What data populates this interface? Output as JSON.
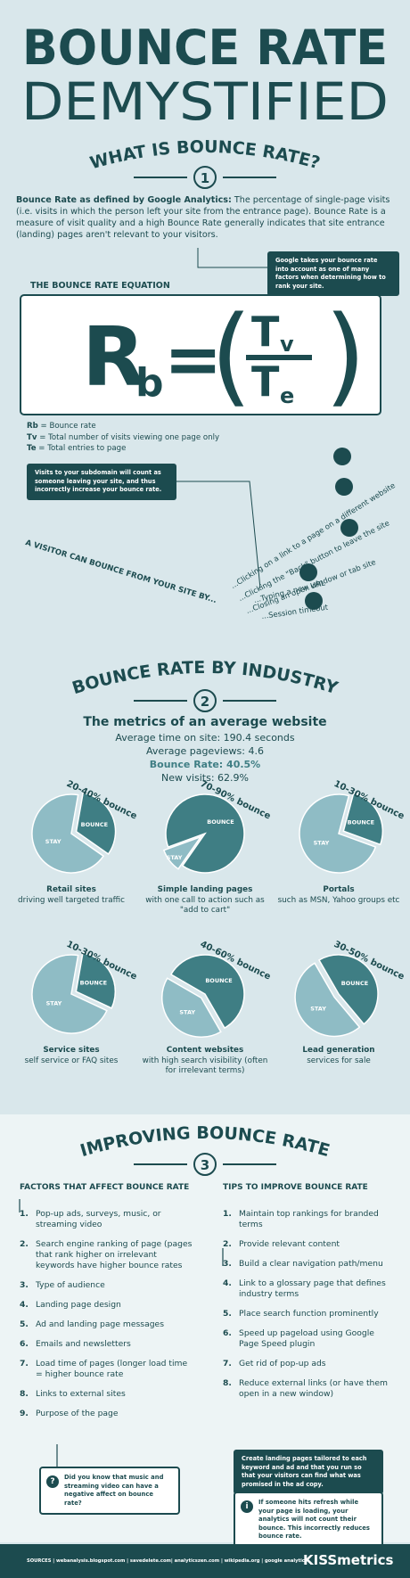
{
  "header": {
    "title_line1": "BOUNCE RATE",
    "title_line2": "DEMYSTIFIED"
  },
  "section1": {
    "heading": "WHAT IS BOUNCE RATE?",
    "number": "1",
    "definition_lead": "Bounce Rate as defined by Google Analytics:",
    "definition_text": " The percentage of single-page visits (i.e. visits in which the person left your site from the entrance page). Bounce Rate is a measure of visit quality and a high Bounce Rate generally indicates that site entrance (landing) pages aren't relevant to your visitors.",
    "google_callout": "Google takes your bounce rate into account as one of many factors when determining how to rank your site.",
    "equation_heading": "THE BOUNCE RATE EQUATION",
    "equation": {
      "r": "R",
      "r_sub": "b",
      "equals": "=",
      "open": "(",
      "close": ")",
      "numerator": "T",
      "numerator_sub": "v",
      "denominator": "T",
      "denominator_sub": "e"
    },
    "legend": [
      {
        "term": "Rb",
        "text": " = Bounce rate"
      },
      {
        "term": "Tv",
        "text": " = Total number of visits viewing one page only"
      },
      {
        "term": "Te",
        "text": " = Total entries to page"
      }
    ],
    "subdomain_callout": "Visits to your subdomain will count as someone leaving your site, and thus incorrectly increase your bounce rate.",
    "ways_heading": "A VISITOR CAN BOUNCE FROM YOUR SITE BY...",
    "ways": [
      "...Clicking on a link to a page on a different website",
      "...Clicking the \"Back\" button to leave the site",
      "...Closing an open window or tab site",
      "...Typing a new URL",
      "...Session timeout"
    ]
  },
  "section2": {
    "heading": "BOUNCE RATE BY INDUSTRY",
    "number": "2",
    "metrics_title": "The metrics of an average website",
    "metrics": [
      "Average time on site: 190.4 seconds",
      "Average pageviews: 4.6",
      "Bounce Rate: 40.5%",
      "New visits: 62.9%"
    ],
    "pies": [
      {
        "range": "20-40% bounce",
        "bounce": "BOUNCE",
        "stay": "STAY",
        "name": "Retail sites",
        "description": "driving well targeted traffic"
      },
      {
        "range": "70-90% bounce",
        "bounce": "BOUNCE",
        "stay": "STAY",
        "name": "Simple landing pages",
        "description": "with one call to action such as \"add to cart\""
      },
      {
        "range": "10-30% bounce",
        "bounce": "BOUNCE",
        "stay": "STAY",
        "name": "Portals",
        "description": "such as MSN, Yahoo groups etc"
      },
      {
        "range": "10-30% bounce",
        "bounce": "BOUNCE",
        "stay": "STAY",
        "name": "Service sites",
        "description": "self service or FAQ sites"
      },
      {
        "range": "40-60% bounce",
        "bounce": "BOUNCE",
        "stay": "STAY",
        "name": "Content websites",
        "description": "with high search visibility (often for irrelevant terms)"
      },
      {
        "range": "30-50% bounce",
        "bounce": "BOUNCE",
        "stay": "STAY",
        "name": "Lead generation",
        "description": "services for sale"
      }
    ]
  },
  "section3": {
    "heading": "IMPROVING BOUNCE RATE",
    "number": "3",
    "factors_heading": "FACTORS THAT AFFECT BOUNCE RATE",
    "factors": [
      {
        "num": "1.",
        "text": "Pop-up ads, surveys, music, or streaming video"
      },
      {
        "num": "2.",
        "text": "Search engine ranking of page (pages that rank higher on irrelevant keywords have higher bounce rates"
      },
      {
        "num": "3.",
        "text": "Type of audience"
      },
      {
        "num": "4.",
        "text": "Landing page design"
      },
      {
        "num": "5.",
        "text": "Ad and landing page messages"
      },
      {
        "num": "6.",
        "text": "Emails and newsletters"
      },
      {
        "num": "7.",
        "text": "Load time of pages (longer load time = higher bounce rate"
      },
      {
        "num": "8.",
        "text": "Links to external sites"
      },
      {
        "num": "9.",
        "text": "Purpose of the page"
      }
    ],
    "factors_callout": {
      "icon": "?",
      "text": "Did you know that music and streaming video can have a negative affect on bounce rate?"
    },
    "tips_heading": "TIPS TO IMPROVE BOUNCE RATE",
    "tips": [
      {
        "num": "1.",
        "text": "Maintain top rankings for branded terms"
      },
      {
        "num": "2.",
        "text": "Provide relevant content"
      },
      {
        "num": "3.",
        "text": "Build a clear navigation path/menu"
      },
      {
        "num": "4.",
        "text": "Link to a glossary page that defines industry terms"
      },
      {
        "num": "5.",
        "text": "Place search function prominently"
      },
      {
        "num": "6.",
        "text": "Speed up pageload using Google Page Speed plugin"
      },
      {
        "num": "7.",
        "text": "Get rid of pop-up ads"
      },
      {
        "num": "8.",
        "text": "Reduce external links (or have them open in a new window)"
      }
    ],
    "tips_callout": "Create landing pages tailored to each keyword and ad and that you run so that your visitors can find what was promised in the ad copy.",
    "refresh_callout": {
      "icon": "i",
      "text": "If someone hits refresh while your page is loading, your analytics will not count their bounce. This incorrectly reduces bounce rate."
    }
  },
  "footer": {
    "sources": "SOURCES | webanalysis.blogspot.com | savedelete.com| analyticszen.com | wikipedia.org | google analytics",
    "brand": "KISSmetrics"
  }
}
